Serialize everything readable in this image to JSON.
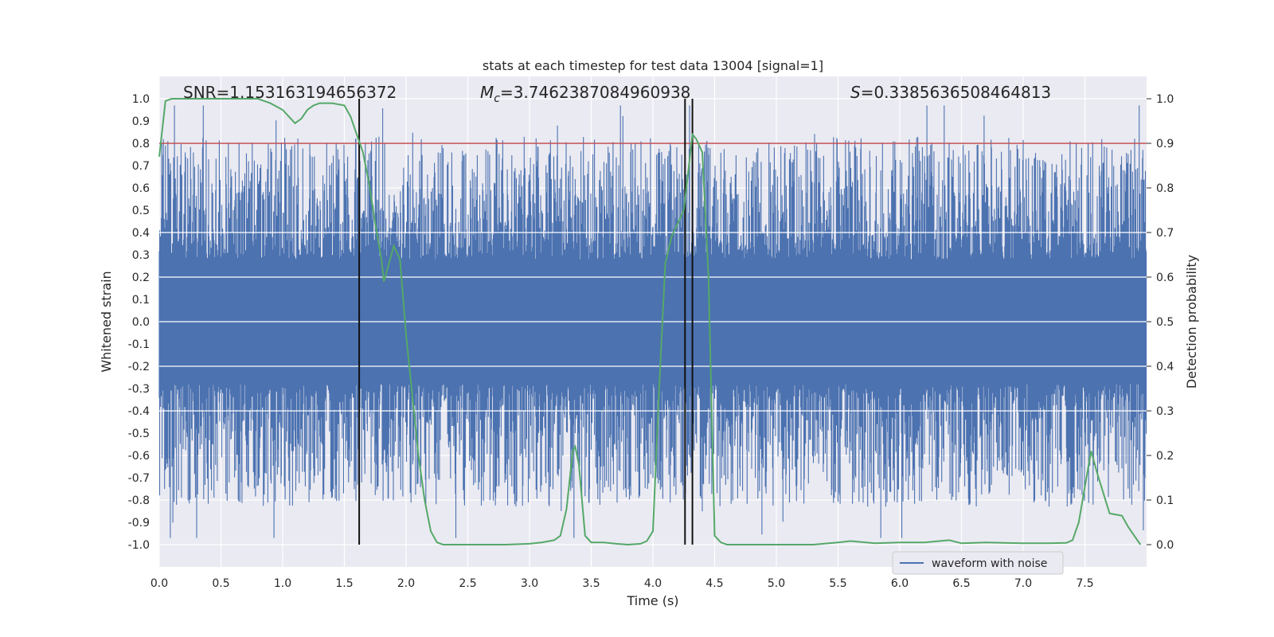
{
  "chart_data": {
    "type": "line",
    "title": "stats at each timestep for test data 13004 [signal=1]",
    "xlabel": "Time (s)",
    "ylabel": "Whitened strain",
    "ylabel_right": "Detection probability",
    "xlim": [
      0.0,
      8.0
    ],
    "ylim": [
      -1.1,
      1.1
    ],
    "ylim_right": [
      -0.05,
      1.05
    ],
    "xticks": [
      "0.0",
      "0.5",
      "1.0",
      "1.5",
      "2.0",
      "2.5",
      "3.0",
      "3.5",
      "4.0",
      "4.5",
      "5.0",
      "5.5",
      "6.0",
      "6.5",
      "7.0",
      "7.5"
    ],
    "yticks": [
      "1.0",
      "0.9",
      "0.8",
      "0.7",
      "0.6",
      "0.5",
      "0.4",
      "0.3",
      "0.2",
      "0.1",
      "0.0",
      "-0.1",
      "-0.2",
      "-0.3",
      "-0.4",
      "-0.5",
      "-0.6",
      "-0.7",
      "-0.8",
      "-0.9",
      "-1.0"
    ],
    "yticks_right": [
      "1.0",
      "0.9",
      "0.8",
      "0.7",
      "0.6",
      "0.5",
      "0.4",
      "0.3",
      "0.2",
      "0.1",
      "0.0"
    ],
    "threshold": 0.9,
    "event_lines_x": [
      1.62,
      4.26,
      4.32
    ],
    "annotations": {
      "snr": "SNR=1.153163194656372",
      "mc_symbol": "M",
      "mc_sub": "c",
      "mc_value": "=3.7462387084960938",
      "s_symbol": "S",
      "s_value": "=0.3385636508464813"
    },
    "legend": {
      "label": "waveform with noise",
      "position": "lower-right"
    },
    "series": [
      {
        "name": "waveform with noise",
        "kind": "noise-envelope",
        "color": "#4c72b0",
        "amplitude_range": [
          -0.97,
          0.97
        ]
      },
      {
        "name": "detection probability",
        "color": "#55a868",
        "axis": "right",
        "x": [
          0.0,
          0.05,
          0.1,
          0.2,
          0.4,
          0.6,
          0.8,
          0.9,
          1.0,
          1.05,
          1.1,
          1.15,
          1.2,
          1.25,
          1.3,
          1.4,
          1.5,
          1.55,
          1.6,
          1.65,
          1.7,
          1.75,
          1.8,
          1.82,
          1.85,
          1.9,
          1.95,
          2.0,
          2.1,
          2.15,
          2.2,
          2.25,
          2.3,
          2.5,
          2.8,
          3.0,
          3.1,
          3.2,
          3.25,
          3.3,
          3.35,
          3.37,
          3.4,
          3.45,
          3.5,
          3.6,
          3.7,
          3.8,
          3.9,
          3.95,
          4.0,
          4.05,
          4.1,
          4.15,
          4.2,
          4.25,
          4.3,
          4.32,
          4.35,
          4.4,
          4.45,
          4.5,
          4.55,
          4.6,
          4.8,
          5.0,
          5.3,
          5.5,
          5.6,
          5.8,
          6.0,
          6.2,
          6.4,
          6.5,
          6.7,
          7.0,
          7.2,
          7.35,
          7.4,
          7.45,
          7.5,
          7.55,
          7.6,
          7.7,
          7.8,
          7.85,
          7.9,
          7.95
        ],
        "values": [
          0.87,
          0.995,
          1.0,
          1.0,
          1.0,
          1.0,
          1.0,
          0.99,
          0.975,
          0.96,
          0.945,
          0.955,
          0.975,
          0.985,
          0.99,
          0.99,
          0.985,
          0.96,
          0.92,
          0.88,
          0.81,
          0.72,
          0.64,
          0.59,
          0.62,
          0.67,
          0.64,
          0.47,
          0.2,
          0.1,
          0.03,
          0.005,
          0.0,
          0.0,
          0.0,
          0.002,
          0.005,
          0.01,
          0.02,
          0.08,
          0.21,
          0.22,
          0.18,
          0.02,
          0.005,
          0.005,
          0.002,
          0.0,
          0.002,
          0.008,
          0.03,
          0.35,
          0.63,
          0.69,
          0.72,
          0.75,
          0.87,
          0.92,
          0.91,
          0.88,
          0.6,
          0.02,
          0.005,
          0.0,
          0.0,
          0.0,
          0.0,
          0.005,
          0.008,
          0.003,
          0.005,
          0.005,
          0.01,
          0.003,
          0.005,
          0.003,
          0.003,
          0.004,
          0.01,
          0.05,
          0.13,
          0.21,
          0.16,
          0.07,
          0.065,
          0.04,
          0.02,
          0.0
        ]
      }
    ]
  }
}
